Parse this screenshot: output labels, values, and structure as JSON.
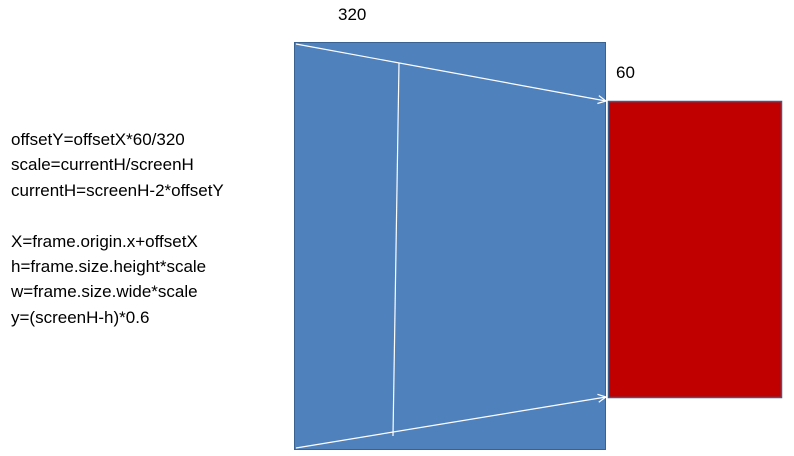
{
  "labels": {
    "top_width": "320",
    "right_offset": "60"
  },
  "formulas": {
    "group1": [
      "offsetY=offsetX*60/320",
      "scale=currentH/screenH",
      "currentH=screenH-2*offsetY"
    ],
    "group2": [
      "X=frame.origin.x+offsetX",
      "h=frame.size.height*scale",
      "w=frame.size.wide*scale",
      "y=(screenH-h)*0.6"
    ]
  },
  "colors": {
    "screen_rect_fill": "#4f81bd",
    "screen_rect_stroke": "#3a6291",
    "offset_rect_fill": "#c00000",
    "offset_rect_stroke": "#385d8a",
    "guide_lines": "#ffffff"
  }
}
